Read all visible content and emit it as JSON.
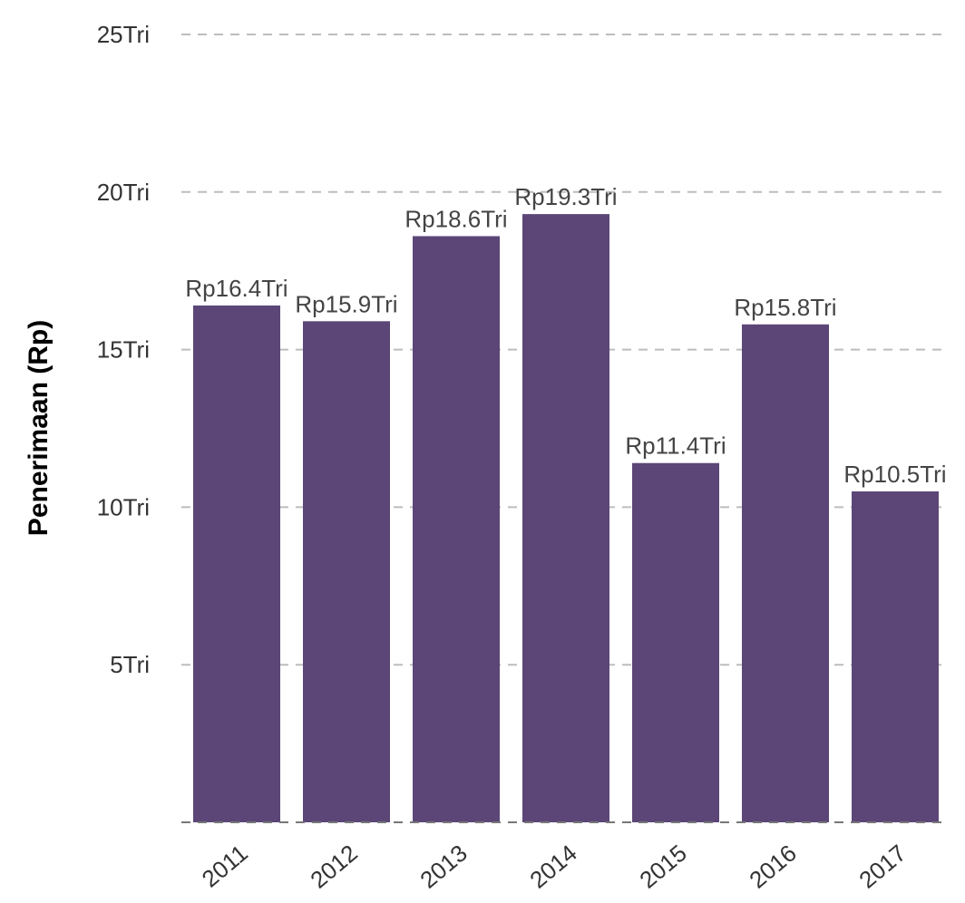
{
  "chart_data": {
    "type": "bar",
    "categories": [
      "2011",
      "2012",
      "2013",
      "2014",
      "2015",
      "2016",
      "2017"
    ],
    "values": [
      16.4,
      15.9,
      18.6,
      19.3,
      11.4,
      15.8,
      10.5
    ],
    "data_labels": [
      "Rp16.4Tri",
      "Rp15.9Tri",
      "Rp18.6Tri",
      "Rp19.3Tri",
      "Rp11.4Tri",
      "Rp15.8Tri",
      "Rp10.5Tri"
    ],
    "title": "",
    "xlabel": "",
    "ylabel": "Penerimaan (Rp)",
    "ylim": [
      0,
      25
    ],
    "y_ticks": [
      5,
      10,
      15,
      20,
      25
    ],
    "y_tick_labels": [
      "5Tri",
      "10Tri",
      "15Tri",
      "20Tri",
      "25Tri"
    ],
    "grid": true,
    "legend": "none",
    "bar_color": "#5b4677",
    "grid_color": "#bdbdbd"
  }
}
